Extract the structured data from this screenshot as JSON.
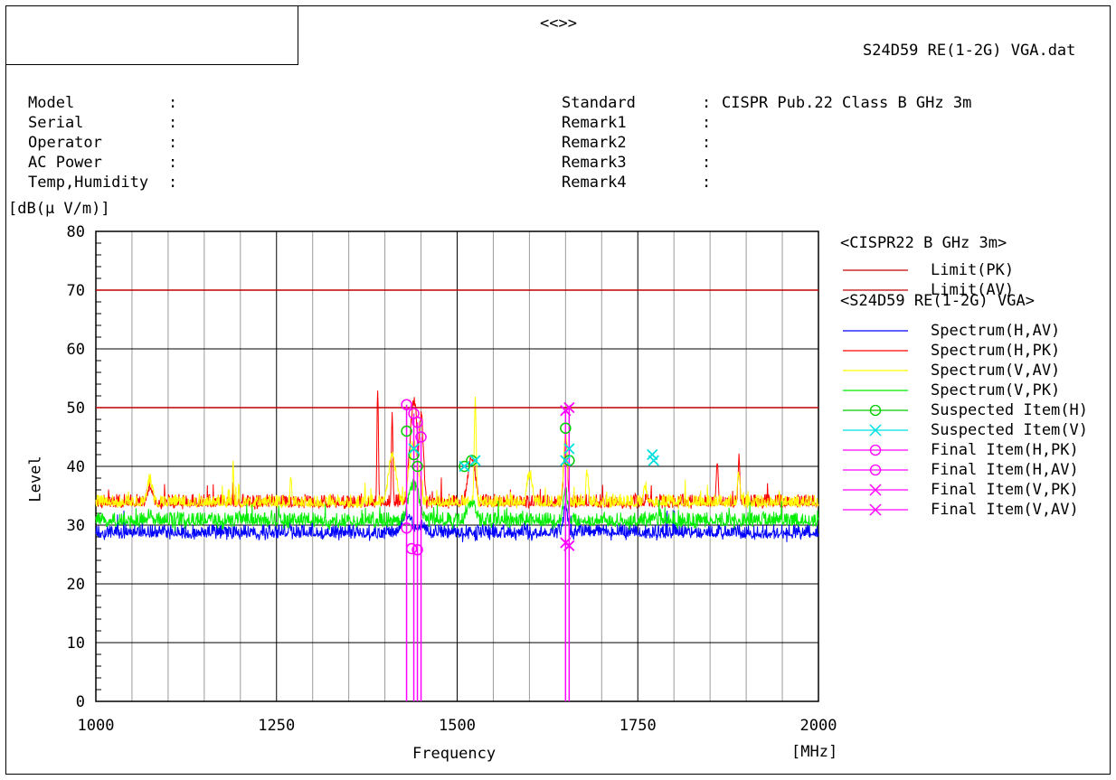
{
  "header": {
    "center_mark": "<<>>",
    "file_name": "S24D59 RE(1-2G) VGA.dat"
  },
  "info_left": [
    {
      "label": "Model",
      "sep": ":"
    },
    {
      "label": "Serial",
      "sep": ":"
    },
    {
      "label": "Operator",
      "sep": ":"
    },
    {
      "label": "AC Power",
      "sep": ":"
    },
    {
      "label": "Temp,Humidity",
      "sep": ":"
    }
  ],
  "info_right": [
    {
      "label": "Standard",
      "sep": ":",
      "value": "CISPR Pub.22 Class B GHz 3m"
    },
    {
      "label": "Remark1",
      "sep": ":",
      "value": ""
    },
    {
      "label": "Remark2",
      "sep": ":",
      "value": ""
    },
    {
      "label": "Remark3",
      "sep": ":",
      "value": ""
    },
    {
      "label": "Remark4",
      "sep": ":",
      "value": ""
    }
  ],
  "colors": {
    "limit": "#c00000",
    "spec_h_av": "#0000ff",
    "spec_h_pk": "#ff0000",
    "spec_v_av": "#ffff00",
    "spec_v_pk": "#00ee00",
    "suspected_h": "#00cc00",
    "suspected_v": "#00e0e0",
    "final": "#ff00ff"
  },
  "legend": {
    "group1_title": "<CISPR22 B GHz 3m>",
    "group2_title": "<S24D59 RE(1-2G) VGA>",
    "items": [
      {
        "label": "Limit(PK)",
        "color": "#c00000",
        "marker": "none"
      },
      {
        "label": "Limit(AV)",
        "color": "#c00000",
        "marker": "none"
      },
      {
        "label": "Spectrum(H,AV)",
        "color": "#0000ff",
        "marker": "none"
      },
      {
        "label": "Spectrum(H,PK)",
        "color": "#ff0000",
        "marker": "none"
      },
      {
        "label": "Spectrum(V,AV)",
        "color": "#ffff00",
        "marker": "none"
      },
      {
        "label": "Spectrum(V,PK)",
        "color": "#00ee00",
        "marker": "none"
      },
      {
        "label": "Suspected Item(H)",
        "color": "#00cc00",
        "marker": "circle"
      },
      {
        "label": "Suspected Item(V)",
        "color": "#00e0e0",
        "marker": "cross"
      },
      {
        "label": "Final Item(H,PK)",
        "color": "#ff00ff",
        "marker": "circle"
      },
      {
        "label": "Final Item(H,AV)",
        "color": "#ff00ff",
        "marker": "circle"
      },
      {
        "label": "Final Item(V,PK)",
        "color": "#ff00ff",
        "marker": "cross"
      },
      {
        "label": "Final Item(V,AV)",
        "color": "#ff00ff",
        "marker": "cross"
      }
    ]
  },
  "chart_data": {
    "type": "line",
    "ylabel_unit": "[dB(μ V/m)]",
    "ylabel": "Level",
    "xlabel": "Frequency",
    "xunit": "[MHz]",
    "xlim": [
      1000,
      2000
    ],
    "ylim": [
      0,
      80
    ],
    "x_ticks": [
      1000,
      1250,
      1500,
      1750,
      2000
    ],
    "y_ticks": [
      0,
      10,
      20,
      30,
      40,
      50,
      60,
      70,
      80
    ],
    "grid": true,
    "limits": [
      {
        "name": "Limit(PK)",
        "value": 70
      },
      {
        "name": "Limit(AV)",
        "value": 50
      }
    ],
    "series": [
      {
        "name": "Spectrum(H,AV)",
        "base": 28.5,
        "noise": 1.6,
        "peaks": [
          [
            1430,
            33,
            12
          ],
          [
            1450,
            31,
            10
          ],
          [
            1650,
            34,
            5
          ],
          [
            1700,
            29.5,
            20
          ]
        ]
      },
      {
        "name": "Spectrum(H,PK)",
        "base": 33.5,
        "noise": 1.8,
        "peaks": [
          [
            1075,
            38,
            6
          ],
          [
            1390,
            54,
            1.5
          ],
          [
            1410,
            51,
            1.5
          ],
          [
            1440,
            52,
            8
          ],
          [
            1450,
            50,
            5
          ],
          [
            1520,
            43,
            8
          ],
          [
            1650,
            46,
            4
          ],
          [
            1860,
            42,
            2
          ],
          [
            1890,
            43,
            2
          ]
        ]
      },
      {
        "name": "Spectrum(V,AV)",
        "base": 30.5,
        "noise": 1.7,
        "peaks": [
          [
            1075,
            33,
            6
          ],
          [
            1440,
            38,
            12
          ],
          [
            1520,
            35,
            10
          ],
          [
            1650,
            37,
            5
          ]
        ]
      },
      {
        "name": "Spectrum(V,PK)",
        "base": 33.5,
        "noise": 1.7,
        "peaks": [
          [
            1075,
            39,
            6
          ],
          [
            1190,
            41,
            1.5
          ],
          [
            1270,
            40,
            1.5
          ],
          [
            1410,
            43,
            8
          ],
          [
            1440,
            45,
            10
          ],
          [
            1525,
            52,
            2
          ],
          [
            1600,
            40,
            6
          ],
          [
            1650,
            47,
            4
          ],
          [
            1680,
            40,
            3
          ],
          [
            1760,
            38,
            4
          ],
          [
            1890,
            40,
            3
          ]
        ]
      }
    ],
    "suspected_h": [
      [
        1430,
        46
      ],
      [
        1440,
        42
      ],
      [
        1445,
        40
      ],
      [
        1510,
        40
      ],
      [
        1520,
        41
      ],
      [
        1650,
        46.5
      ],
      [
        1655,
        41
      ]
    ],
    "suspected_v": [
      [
        1440,
        43
      ],
      [
        1510,
        40
      ],
      [
        1525,
        41
      ],
      [
        1650,
        41
      ],
      [
        1655,
        43
      ],
      [
        1770,
        42
      ],
      [
        1772,
        41
      ]
    ],
    "final_h_pk": [
      [
        1430,
        50.5
      ],
      [
        1440,
        49
      ],
      [
        1445,
        47.5
      ],
      [
        1450,
        45
      ]
    ],
    "final_h_av": [
      [
        1430,
        29.5
      ],
      [
        1437,
        26
      ],
      [
        1445,
        25.8
      ]
    ],
    "final_v_pk": [
      [
        1650,
        49.5
      ],
      [
        1655,
        50
      ]
    ],
    "final_v_av": [
      [
        1650,
        27
      ],
      [
        1655,
        26.5
      ]
    ]
  }
}
